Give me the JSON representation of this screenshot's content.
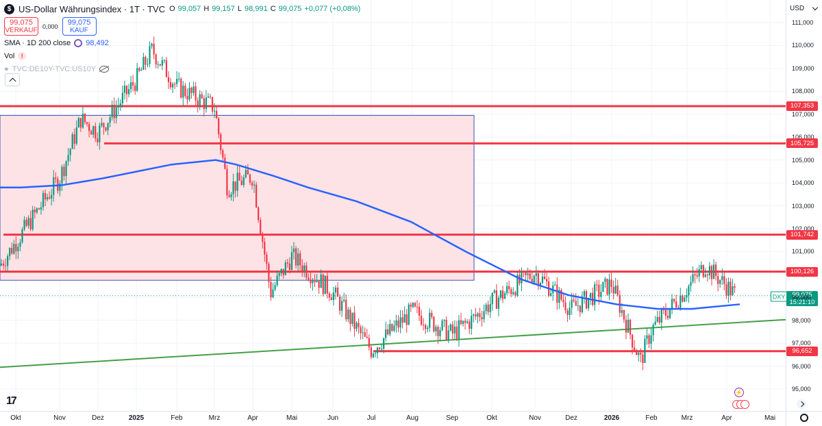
{
  "legend": {
    "symbol_logo": "$",
    "title": "US-Dollar Währungsindex · 1T · TVC",
    "ohlc": [
      {
        "key": "O",
        "value": "99,057"
      },
      {
        "key": "H",
        "value": "99,157"
      },
      {
        "key": "L",
        "value": "98,991"
      },
      {
        "key": "C",
        "value": "99,075"
      },
      {
        "key": "",
        "value": "+0,077 (+0,08%)"
      }
    ],
    "sell": {
      "price": "99,075",
      "label": "VERKAUF"
    },
    "spread": "0,000",
    "buy": {
      "price": "99,075",
      "label": "KAUF"
    },
    "sma": {
      "label": "SMA · 1D 200 close",
      "value": "98,492"
    },
    "vol": {
      "label": "Vol",
      "warn": "!"
    },
    "compare": {
      "label": "TVC:DE10Y-TVC:US10Y"
    }
  },
  "price_axis": {
    "currency": "USD",
    "ticks": [
      "111,000",
      "110,000",
      "109,000",
      "108,000",
      "107,000",
      "106,000",
      "105,000",
      "104,000",
      "103,000",
      "102,000",
      "101,000",
      "100,000",
      "99,000",
      "98,000",
      "97,000",
      "96,000",
      "95,000"
    ]
  },
  "time_axis": {
    "ticks": [
      "Okt",
      "Nov",
      "Dez",
      "2025",
      "Feb",
      "Mrz",
      "Apr",
      "Mai",
      "Jun",
      "Jul",
      "Aug",
      "Sep",
      "Okt",
      "Nov",
      "Dez",
      "2026",
      "Feb",
      "Mrz",
      "Apr",
      "Mai"
    ]
  },
  "levels": [
    {
      "label": "107,353",
      "value": 107.353
    },
    {
      "label": "105,725",
      "value": 105.725
    },
    {
      "label": "101,742",
      "value": 101.742
    },
    {
      "label": "100,126",
      "value": 100.126
    },
    {
      "label": "96,652",
      "value": 96.652
    }
  ],
  "current": {
    "symbol": "DXY",
    "price": "99,075",
    "countdown": "15:21:10",
    "value": 99.075
  },
  "colors": {
    "up": "#089981",
    "down": "#f23645",
    "sma": "#2962ff",
    "trend": "#43a047",
    "level": "#f23645",
    "zone_fill": "#fde3e6",
    "zone_border": "#3b4fb4"
  },
  "chart_data": {
    "type": "candlestick",
    "symbol": "US-Dollar Währungsindex",
    "interval": "1T",
    "ylim": [
      94.6,
      111.6
    ],
    "x_months": [
      "Okt",
      "Nov",
      "Dez",
      "2025",
      "Feb",
      "Mrz",
      "Apr",
      "Mai",
      "Jun",
      "Jul",
      "Aug",
      "Sep",
      "Okt",
      "Nov",
      "Dez",
      "2026",
      "Feb",
      "Mrz",
      "Apr",
      "Mai"
    ],
    "close_path": [
      {
        "t": "Okt",
        "v": 100.4
      },
      {
        "t": "Nov",
        "v": 104.2
      },
      {
        "t": "Nov-mid",
        "v": 106.8
      },
      {
        "t": "Dez",
        "v": 106.2
      },
      {
        "t": "2025",
        "v": 108.5
      },
      {
        "t": "Jan-mid",
        "v": 109.8
      },
      {
        "t": "Feb",
        "v": 108.2
      },
      {
        "t": "Mrz",
        "v": 107.3
      },
      {
        "t": "Mrz-mid",
        "v": 103.8
      },
      {
        "t": "Apr",
        "v": 104.3
      },
      {
        "t": "Apr-mid",
        "v": 99.2
      },
      {
        "t": "Mai",
        "v": 100.8
      },
      {
        "t": "Jun",
        "v": 99.2
      },
      {
        "t": "Jul",
        "v": 96.7
      },
      {
        "t": "Aug",
        "v": 98.4
      },
      {
        "t": "Sep",
        "v": 97.4
      },
      {
        "t": "Sep-end",
        "v": 98.1
      },
      {
        "t": "Okt",
        "v": 98.8
      },
      {
        "t": "Nov",
        "v": 100.1
      },
      {
        "t": "Dez",
        "v": 98.5
      },
      {
        "t": "2026",
        "v": 99.6
      },
      {
        "t": "Jan-end",
        "v": 96.2
      },
      {
        "t": "Feb",
        "v": 97.6
      },
      {
        "t": "Mrz",
        "v": 99.4
      },
      {
        "t": "Mrz-mid",
        "v": 100.4
      },
      {
        "t": "Apr",
        "v": 99.075
      }
    ],
    "sma_path": [
      103.8,
      103.8,
      103.9,
      104.2,
      104.5,
      104.8,
      105.0,
      104.8,
      104.3,
      103.8,
      103.2,
      102.3,
      101.0,
      99.8,
      99.1,
      98.7,
      98.5,
      98.5,
      98.7
    ],
    "trendline": {
      "start": 95.95,
      "end": 98.03
    },
    "zone": {
      "from": "Okt",
      "to": "Sep-end",
      "high": 106.95,
      "low": 99.75
    }
  }
}
